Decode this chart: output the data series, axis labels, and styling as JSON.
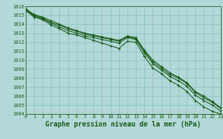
{
  "title": "Graphe pression niveau de la mer (hPa)",
  "bg_color": "#b2d8d8",
  "grid_color": "#80c0c0",
  "line_color": "#1a5c1a",
  "xlim": [
    0,
    23
  ],
  "ylim": [
    1004,
    1016
  ],
  "xticks": [
    0,
    1,
    2,
    3,
    4,
    5,
    6,
    7,
    8,
    9,
    10,
    11,
    12,
    13,
    14,
    15,
    16,
    17,
    18,
    19,
    20,
    21,
    22,
    23
  ],
  "yticks": [
    1004,
    1005,
    1006,
    1007,
    1008,
    1009,
    1010,
    1011,
    1012,
    1013,
    1014,
    1015,
    1016
  ],
  "series": [
    [
      1015.7,
      1015.0,
      1014.7,
      1014.2,
      1013.9,
      1013.5,
      1013.2,
      1012.9,
      1012.7,
      1012.5,
      1012.3,
      1012.1,
      1012.6,
      1012.4,
      1011.0,
      1009.8,
      1009.1,
      1008.4,
      1008.0,
      1007.4,
      1006.4,
      1005.8,
      1005.3,
      1004.6
    ],
    [
      1015.7,
      1015.1,
      1014.8,
      1014.4,
      1014.0,
      1013.6,
      1013.3,
      1013.0,
      1012.8,
      1012.6,
      1012.4,
      1012.2,
      1012.7,
      1012.5,
      1011.1,
      1010.0,
      1009.3,
      1008.6,
      1008.1,
      1007.5,
      1006.5,
      1006.0,
      1005.4,
      1004.7
    ],
    [
      1015.6,
      1014.9,
      1014.6,
      1014.1,
      1013.7,
      1013.3,
      1013.0,
      1012.7,
      1012.5,
      1012.3,
      1012.1,
      1011.9,
      1012.5,
      1012.3,
      1010.8,
      1009.6,
      1008.9,
      1008.2,
      1007.7,
      1007.1,
      1006.1,
      1005.5,
      1005.0,
      1004.3
    ],
    [
      1015.5,
      1014.8,
      1014.5,
      1013.9,
      1013.5,
      1013.0,
      1012.8,
      1012.5,
      1012.2,
      1011.9,
      1011.6,
      1011.3,
      1012.1,
      1012.0,
      1010.4,
      1009.1,
      1008.5,
      1007.7,
      1007.2,
      1006.5,
      1005.5,
      1004.8,
      1004.3,
      1004.0
    ]
  ],
  "marker": "+",
  "markersize": 3.5,
  "linewidth": 0.8,
  "title_fontsize": 7,
  "tick_fontsize": 5,
  "font_family": "monospace"
}
